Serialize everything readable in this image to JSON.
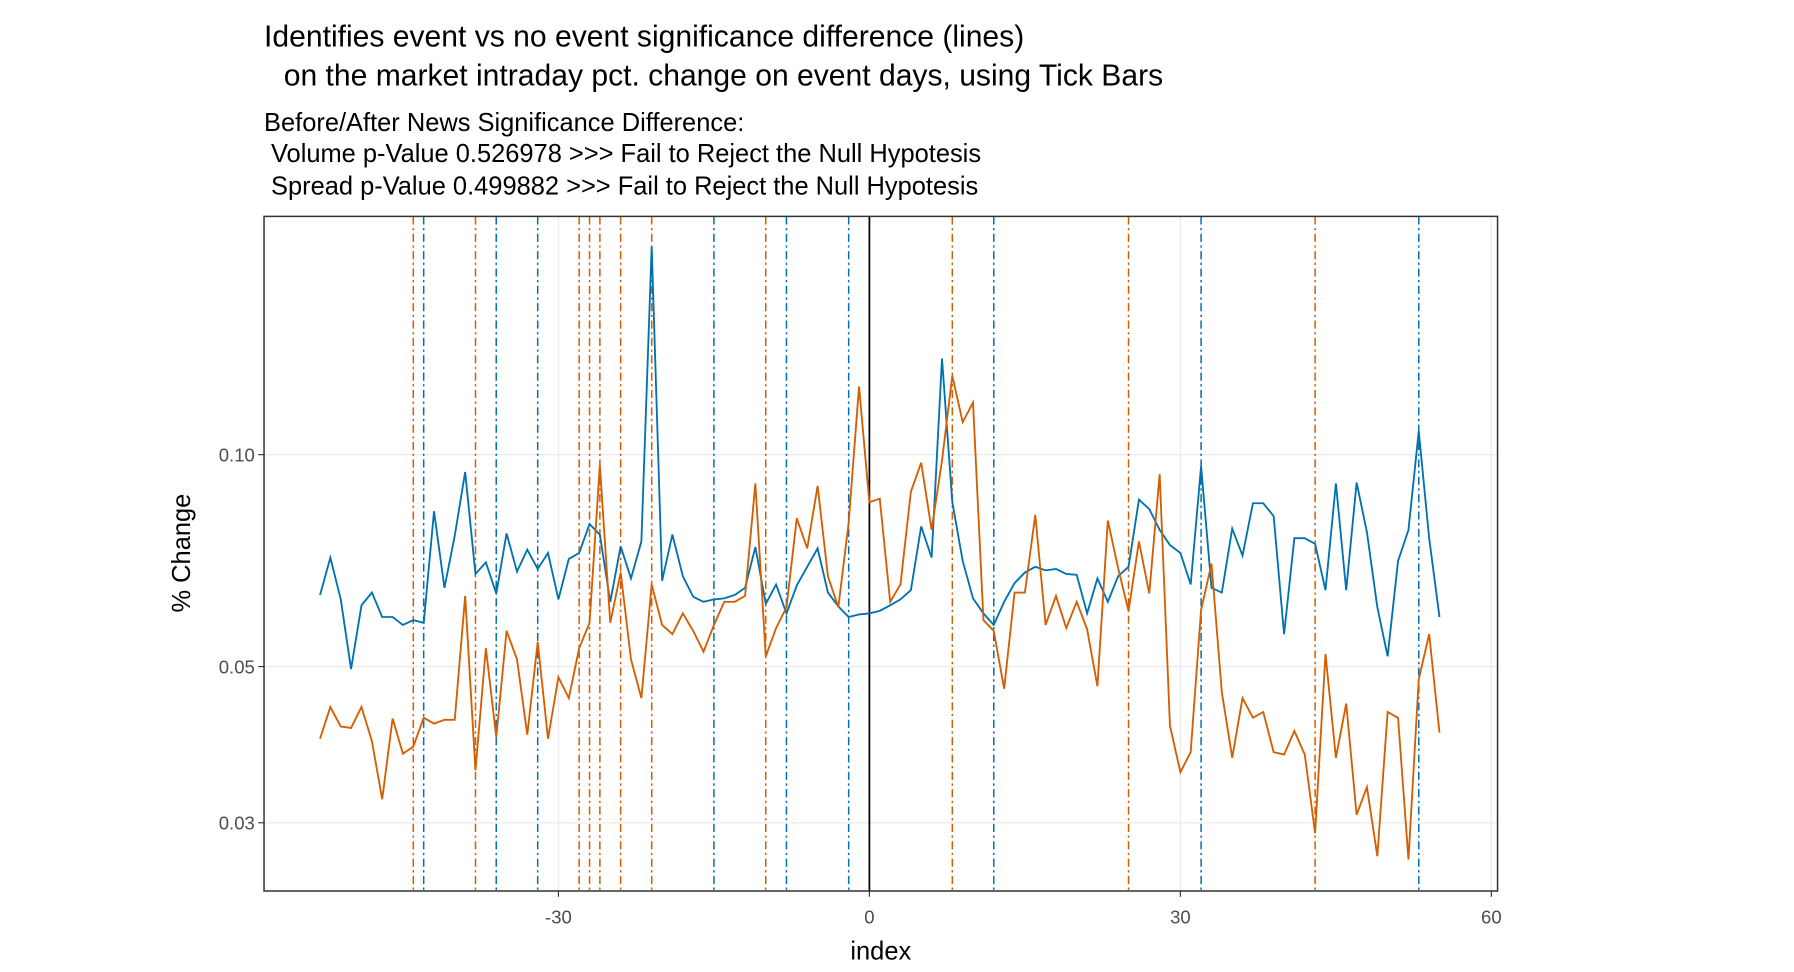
{
  "chart_data": {
    "type": "line",
    "title": [
      "Identifies event vs no event significance difference (lines)",
      "on the market intraday pct. change on event days, using Tick Bars"
    ],
    "subtitle": [
      "Before/After News Significance Difference:",
      "Volume p-Value 0.526978 >>> Fail to Reject the Null Hypotesis",
      "Spread p-Value 0.499882 >>> Fail to Reject the Null Hypotesis"
    ],
    "x_label": "index",
    "y_label": "% Change",
    "log_y": true,
    "grid": true,
    "xlim": [
      -58.4,
      60.6
    ],
    "xticks": [
      -30,
      0,
      30,
      60
    ],
    "ylim": [
      0.024,
      0.218
    ],
    "yticks": [
      0.03,
      0.05,
      {
        "value": 0.1,
        "label": "0.10"
      }
    ],
    "x": [
      -53,
      -52,
      -51,
      -50,
      -49,
      -48,
      -47,
      -46,
      -45,
      -44,
      -43,
      -42,
      -41,
      -40,
      -39,
      -38,
      -37,
      -36,
      -35,
      -34,
      -33,
      -32,
      -31,
      -30,
      -29,
      -28,
      -27,
      -26,
      -25,
      -24,
      -23,
      -22,
      -21,
      -20,
      -19,
      -18,
      -17,
      -16,
      -15,
      -14,
      -13,
      -12,
      -11,
      -10,
      -9,
      -8,
      -7,
      -6,
      -5,
      -4,
      -3,
      -2,
      -1,
      0,
      1,
      2,
      3,
      4,
      5,
      6,
      7,
      8,
      9,
      10,
      11,
      12,
      13,
      14,
      15,
      16,
      17,
      18,
      19,
      20,
      21,
      22,
      23,
      24,
      25,
      26,
      27,
      28,
      29,
      30,
      31,
      32,
      33,
      34,
      35,
      36,
      37,
      38,
      39,
      40,
      41,
      42,
      43,
      44,
      45,
      46,
      47,
      48,
      49,
      50,
      51,
      52,
      53,
      54,
      55
    ],
    "series": [
      {
        "color": "#0072B2",
        "values": [
          0.0632,
          0.0714,
          0.0623,
          0.0496,
          0.0611,
          0.0637,
          0.0588,
          0.0588,
          0.0573,
          0.0582,
          0.0577,
          0.0831,
          0.0647,
          0.0767,
          0.0945,
          0.0677,
          0.0703,
          0.0635,
          0.0773,
          0.0682,
          0.0733,
          0.0688,
          0.0725,
          0.0623,
          0.0711,
          0.0725,
          0.0797,
          0.077,
          0.0618,
          0.0741,
          0.0667,
          0.0753,
          0.1977,
          0.0662,
          0.077,
          0.0672,
          0.0628,
          0.0618,
          0.0623,
          0.0625,
          0.0632,
          0.0647,
          0.0739,
          0.0614,
          0.0654,
          0.0595,
          0.0652,
          0.0693,
          0.0736,
          0.0637,
          0.0609,
          0.0588,
          0.0593,
          0.0595,
          0.06,
          0.0611,
          0.0623,
          0.0642,
          0.0791,
          0.0714,
          0.1369,
          0.0856,
          0.0706,
          0.0625,
          0.0595,
          0.0573,
          0.0618,
          0.0657,
          0.068,
          0.0693,
          0.0685,
          0.0688,
          0.0677,
          0.0675,
          0.0595,
          0.0667,
          0.0618,
          0.0672,
          0.0693,
          0.0863,
          0.0837,
          0.0782,
          0.0744,
          0.0725,
          0.0654,
          0.0963,
          0.0647,
          0.0637,
          0.0785,
          0.0719,
          0.0853,
          0.0853,
          0.0818,
          0.0556,
          0.0761,
          0.0761,
          0.0747,
          0.0642,
          0.091,
          0.0642,
          0.0913,
          0.0776,
          0.0607,
          0.0517,
          0.0706,
          0.0782,
          0.1079,
          0.0761,
          0.0588
        ]
      },
      {
        "color": "#D55E00",
        "values": [
          0.0395,
          0.0438,
          0.0411,
          0.0409,
          0.0438,
          0.0392,
          0.0324,
          0.0422,
          0.0376,
          0.0385,
          0.0423,
          0.0415,
          0.042,
          0.042,
          0.063,
          0.0356,
          0.0531,
          0.0397,
          0.0562,
          0.0512,
          0.04,
          0.0542,
          0.0395,
          0.0483,
          0.0451,
          0.0531,
          0.0577,
          0.0966,
          0.0577,
          0.068,
          0.0512,
          0.0451,
          0.0654,
          0.0573,
          0.0556,
          0.0595,
          0.0562,
          0.0525,
          0.0573,
          0.0618,
          0.0618,
          0.063,
          0.091,
          0.0517,
          0.0567,
          0.0607,
          0.0812,
          0.0736,
          0.0903,
          0.0672,
          0.0607,
          0.08,
          0.125,
          0.0856,
          0.0866,
          0.0618,
          0.0654,
          0.0886,
          0.0974,
          0.0782,
          0.0981,
          0.1294,
          0.1112,
          0.1186,
          0.0582,
          0.0562,
          0.0465,
          0.0637,
          0.0637,
          0.0821,
          0.0573,
          0.063,
          0.0567,
          0.0618,
          0.0565,
          0.0469,
          0.0806,
          0.069,
          0.06,
          0.0753,
          0.0635,
          0.0938,
          0.0412,
          0.0354,
          0.0378,
          0.0602,
          0.07,
          0.046,
          0.0371,
          0.0451,
          0.0423,
          0.0431,
          0.0378,
          0.0375,
          0.0405,
          0.0375,
          0.029,
          0.0521,
          0.0371,
          0.0443,
          0.0308,
          0.0337,
          0.0269,
          0.0431,
          0.0423,
          0.0266,
          0.048,
          0.0556,
          0.0403
        ]
      }
    ],
    "vlines": [
      {
        "color": "#D55E00",
        "style": "dashdot",
        "x": [
          -44,
          -38,
          -28,
          -27,
          -26,
          -24,
          -21,
          -10,
          8,
          25,
          43
        ]
      },
      {
        "color": "#0072B2",
        "style": "dashdot",
        "x": [
          -43,
          -36,
          -32,
          -15,
          -8,
          -2,
          12,
          32,
          53
        ]
      },
      {
        "color": "#000000",
        "style": "solid",
        "x": [
          0
        ]
      }
    ]
  }
}
